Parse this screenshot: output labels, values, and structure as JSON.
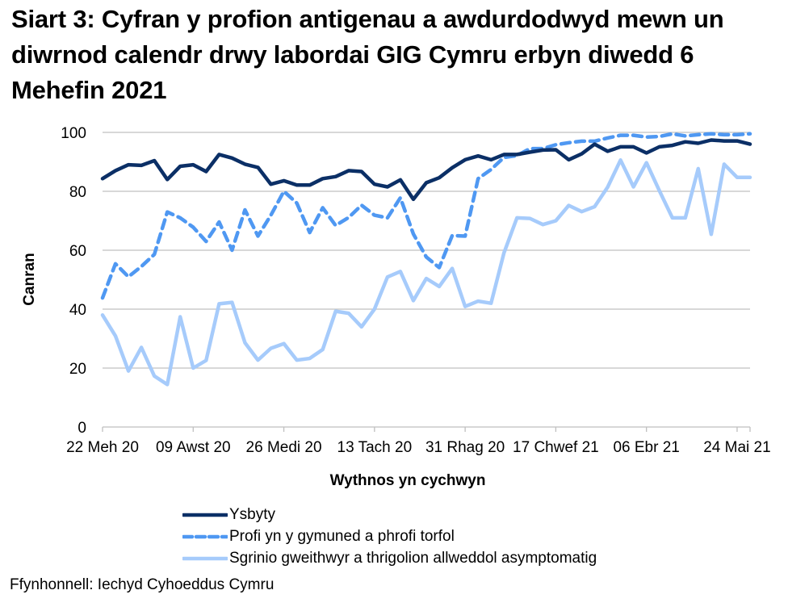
{
  "title": "Siart 3: Cyfran y profion antigenau a awdurdodwyd mewn un diwrnod calendr drwy labordai GIG Cymru erbyn diwedd 6 Mehefin 2021",
  "source": "Ffynhonnell: Iechyd Cyhoeddus Cymru",
  "chart_data": {
    "type": "line",
    "title": "Siart 3: Cyfran y profion antigenau a awdurdodwyd mewn un diwrnod calendr drwy labordai GIG Cymru erbyn diwedd 6 Mehefin 2021",
    "xlabel": "Wythnos yn cychwyn",
    "ylabel": "Canran",
    "ylim": [
      0,
      100
    ],
    "yticks": [
      0,
      20,
      40,
      60,
      80,
      100
    ],
    "grid": true,
    "legend_position": "bottom",
    "x_tick_labels": [
      "22 Meh 20",
      "09 Awst 20",
      "26 Medi 20",
      "13 Tach 20",
      "31 Rhag 20",
      "17 Chwef 21",
      "06 Ebr 21",
      "24 Mai 21"
    ],
    "x_tick_indices": [
      0,
      7,
      14,
      21,
      28,
      35,
      42,
      49
    ],
    "n_points": 51,
    "series": [
      {
        "name": "Ysbyty",
        "color": "#0b2f66",
        "style": "solid",
        "values": [
          84.3,
          87,
          89,
          88.8,
          90.4,
          84,
          88.5,
          89,
          86.7,
          92.5,
          91.3,
          89.2,
          88.1,
          82.4,
          83.6,
          82.1,
          82.1,
          84.3,
          85,
          87,
          86.7,
          82.4,
          81.5,
          83.9,
          77.3,
          82.9,
          84.6,
          88,
          90.7,
          92,
          90.7,
          92.5,
          92.5,
          93.3,
          94,
          94.1,
          90.7,
          92.7,
          96,
          93.6,
          95.1,
          95.1,
          93,
          95.1,
          95.6,
          96.8,
          96.3,
          97.4,
          97.1,
          97.1,
          96
        ]
      },
      {
        "name": "Profi yn y gymuned a phrofi torfol",
        "color": "#4f98f2",
        "style": "dashed",
        "values": [
          43.8,
          55.4,
          51,
          54.5,
          58.6,
          73,
          71,
          67.8,
          63,
          69.6,
          60,
          73.7,
          64.8,
          71.9,
          80,
          76,
          66,
          74.4,
          68.4,
          71.1,
          75.3,
          71.9,
          71,
          77.8,
          65.5,
          57.7,
          54.1,
          65,
          64.8,
          84.3,
          87.4,
          91.5,
          92.1,
          94.5,
          94.5,
          95.8,
          96.5,
          97,
          97,
          98.1,
          99,
          99,
          98.4,
          98.6,
          99.5,
          98.8,
          99.2,
          99.5,
          99.2,
          99.2,
          99.5
        ]
      },
      {
        "name": "Sgrinio gweithwyr a thrigolion allweddol asymptomatig",
        "color": "#a6cbfb",
        "style": "solid",
        "values": [
          38,
          30.9,
          19,
          27,
          17.3,
          14.4,
          37.4,
          20,
          22.6,
          41.8,
          42.3,
          28.6,
          22.7,
          26.7,
          28.3,
          22.7,
          23.3,
          26.3,
          39.3,
          38.6,
          34,
          40,
          50.9,
          52.8,
          42.9,
          50.4,
          47.7,
          53.8,
          40.9,
          42.7,
          42,
          59.1,
          71,
          70.8,
          68.7,
          70,
          75.2,
          73.1,
          74.8,
          81.4,
          90.6,
          81.5,
          89.7,
          80.2,
          71,
          71,
          87.7,
          65.4,
          89.2,
          84.7,
          84.7
        ]
      }
    ]
  },
  "legend": [
    {
      "label": "Ysbyty"
    },
    {
      "label": "Profi yn y gymuned a phrofi torfol"
    },
    {
      "label": "Sgrinio gweithwyr a thrigolion allweddol asymptomatig"
    }
  ]
}
